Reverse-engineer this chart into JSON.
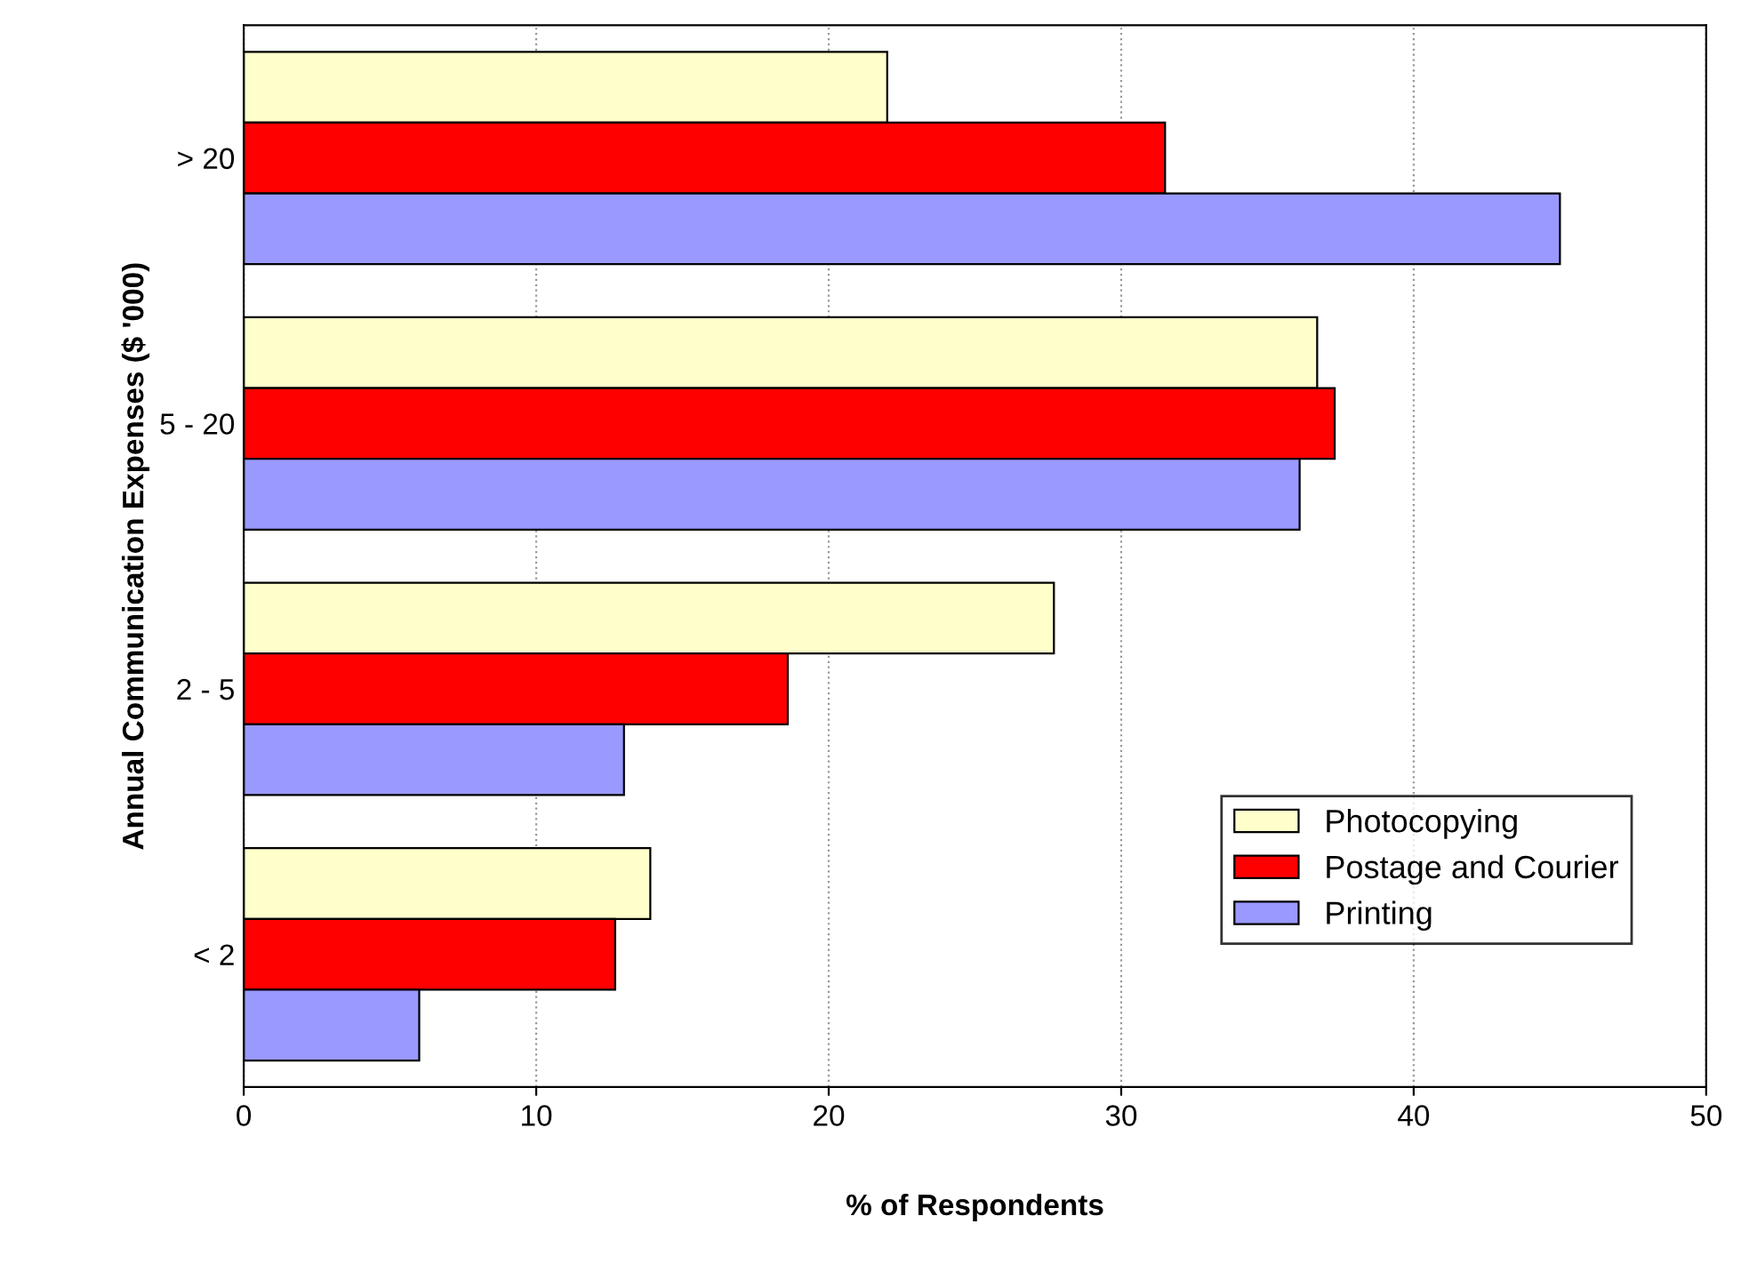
{
  "chart_data": {
    "type": "bar",
    "orientation": "horizontal",
    "xlabel": "% of Respondents",
    "ylabel": "Annual Communication Expenses ($ '000)",
    "categories": [
      "> 20",
      "5 - 20",
      "2 - 5",
      "< 2"
    ],
    "series": [
      {
        "name": "Photocopying",
        "color": "#ffffcc",
        "values": [
          22,
          36.7,
          27.7,
          13.9
        ]
      },
      {
        "name": "Postage and Courier",
        "color": "#ff0000",
        "values": [
          31.5,
          37.3,
          18.6,
          12.7
        ]
      },
      {
        "name": "Printing",
        "color": "#9999ff",
        "values": [
          45,
          36.1,
          13,
          6
        ]
      }
    ],
    "xlim": [
      0,
      50
    ],
    "xticks": [
      0,
      10,
      20,
      30,
      40,
      50
    ],
    "grid": "x",
    "legend": "bottom right"
  }
}
